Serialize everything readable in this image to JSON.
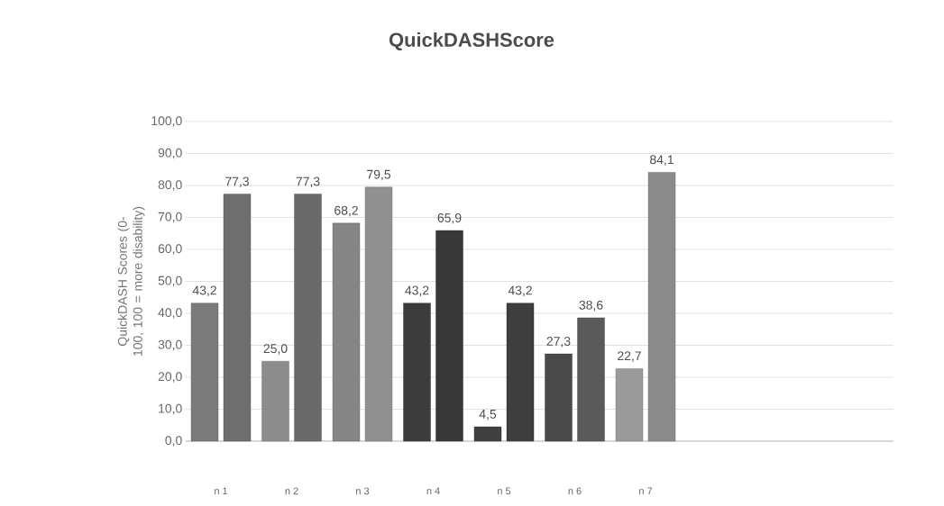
{
  "chart_data": {
    "type": "bar",
    "title": "QuickDASHScore",
    "ylabel": "QuickDASH Scores (0-100, 100 = more disability)",
    "categories": [
      "n 1",
      "n 2",
      "n 3",
      "n 4",
      "n 5",
      "n 6",
      "n 7",
      null,
      null,
      null
    ],
    "series": [
      {
        "colors": [
          "#7a7a7a",
          "#8c8c8c",
          "#858585",
          "#3c3c3c",
          "#404040",
          "#4a4a4a",
          "#9a9a9a",
          null,
          null,
          null
        ],
        "values": [
          43.2,
          25.0,
          68.2,
          43.2,
          4.5,
          27.3,
          22.7,
          null,
          null,
          null
        ],
        "value_labels": [
          "43,2",
          "25,0",
          "68,2",
          "43,2",
          "4,5",
          "27,3",
          "22,7",
          null,
          null,
          null
        ]
      },
      {
        "colors": [
          "#6e6e6e",
          "#6a6a6a",
          "#909090",
          "#383838",
          "#3e3e3e",
          "#5a5a5a",
          "#8a8a8a",
          null,
          null,
          null
        ],
        "values": [
          77.3,
          77.3,
          79.5,
          65.9,
          43.2,
          38.6,
          84.1,
          null,
          null,
          null
        ],
        "value_labels": [
          "77,3",
          "77,3",
          "79,5",
          "65,9",
          "43,2",
          "38,6",
          "84,1",
          null,
          null,
          null
        ]
      }
    ],
    "ylim": [
      0,
      100
    ],
    "yticks": [
      {
        "value": 0,
        "label": "0,0"
      },
      {
        "value": 10,
        "label": "10,0"
      },
      {
        "value": 20,
        "label": "20,0"
      },
      {
        "value": 30,
        "label": "30,0"
      },
      {
        "value": 40,
        "label": "40,0"
      },
      {
        "value": 50,
        "label": "50,0"
      },
      {
        "value": 60,
        "label": "60,0"
      },
      {
        "value": 70,
        "label": "70,0"
      },
      {
        "value": 80,
        "label": "80,0"
      },
      {
        "value": 90,
        "label": "90,0"
      },
      {
        "value": 100,
        "label": "100,0"
      }
    ],
    "grid": "y"
  }
}
